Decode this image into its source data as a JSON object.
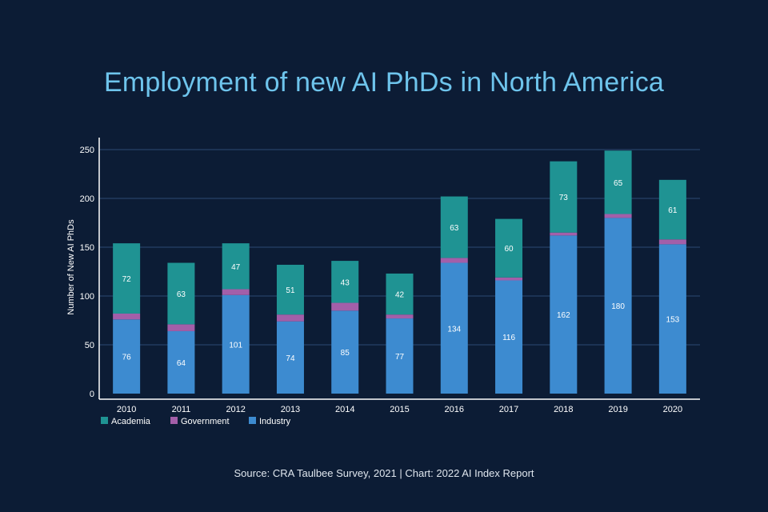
{
  "title": "Employment of new AI PhDs in North America",
  "source": "Source: CRA Taulbee Survey, 2021 | Chart: 2022 AI Index Report",
  "chart_data": {
    "type": "bar",
    "stacked": true,
    "categories": [
      "2010",
      "2011",
      "2012",
      "2013",
      "2014",
      "2015",
      "2016",
      "2017",
      "2018",
      "2019",
      "2020"
    ],
    "series": [
      {
        "name": "Industry",
        "color": "#3d8bd0",
        "values": [
          76,
          64,
          101,
          74,
          85,
          77,
          134,
          116,
          162,
          180,
          153
        ],
        "labeled": true
      },
      {
        "name": "Government",
        "color": "#a35fa9",
        "values": [
          6,
          7,
          6,
          7,
          8,
          4,
          5,
          3,
          3,
          4,
          5
        ],
        "labeled": false
      },
      {
        "name": "Academia",
        "color": "#1f9393",
        "values": [
          72,
          63,
          47,
          51,
          43,
          42,
          63,
          60,
          73,
          65,
          61
        ],
        "labeled": true
      }
    ],
    "legend_order": [
      "Academia",
      "Government",
      "Industry"
    ],
    "ylabel": "Number of New AI PhDs",
    "xlabel": "",
    "ylim": [
      0,
      250
    ],
    "yticks": [
      0,
      50,
      100,
      150,
      200,
      250
    ],
    "grid": true,
    "legend_position": "bottom-left"
  }
}
